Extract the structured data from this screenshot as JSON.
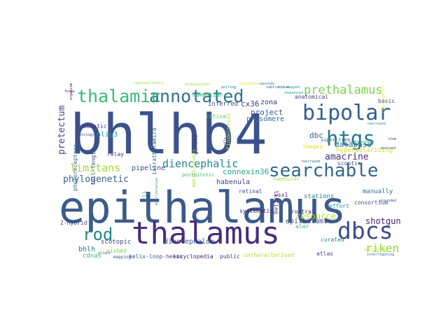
{
  "words": [
    {
      "text": "epithalamus",
      "color": "#3b5b8c"
    },
    {
      "text": "bhlhb4",
      "color": "#3b528b"
    },
    {
      "text": "thalamus",
      "color": "#472d7b"
    },
    {
      "text": "annotated",
      "color": "#2c728e"
    },
    {
      "text": "thalamic",
      "color": "#3aba76"
    },
    {
      "text": "bipolar",
      "color": "#355f8d"
    },
    {
      "text": "searchable",
      "color": "#31688e"
    },
    {
      "text": "htgs",
      "color": "#2a788e"
    },
    {
      "text": "prethalamus",
      "color": "#7ad151"
    },
    {
      "text": "dbcs",
      "color": "#3e4a89"
    },
    {
      "text": "rod",
      "color": "#25858e"
    },
    {
      "text": "riken",
      "color": "#8fd744"
    },
    {
      "text": "limitans",
      "color": "#a2da37"
    },
    {
      "text": "diencephalic",
      "color": "#26828e"
    },
    {
      "text": "phylogenetic",
      "color": "#33638d"
    },
    {
      "text": "pretectum",
      "color": "#3e4c8a"
    },
    {
      "text": "amacrine",
      "color": "#46307e"
    },
    {
      "text": "database",
      "color": "#2a788e"
    },
    {
      "text": "connexin36",
      "color": "#22a884"
    },
    {
      "text": "cx36",
      "color": "#443a83"
    },
    {
      "text": "shotgun",
      "color": "#482173"
    },
    {
      "text": "resource",
      "color": "#b5de2b"
    },
    {
      "text": "project",
      "color": "#3b528b"
    },
    {
      "text": "dbc",
      "color": "#355f8d"
    },
    {
      "text": "hyperpolarizing",
      "color": "#cae11f"
    },
    {
      "text": "olig3",
      "color": "#1f9a8a"
    },
    {
      "text": "pipeline",
      "color": "#3e4a89"
    },
    {
      "text": "habenula",
      "color": "#404688"
    },
    {
      "text": "inferred",
      "color": "#3b528b"
    },
    {
      "text": "mammalian",
      "color": "#29af7f"
    },
    {
      "text": "prosomere",
      "color": "#2e6e8e"
    },
    {
      "text": "zona",
      "color": "#472c7a"
    },
    {
      "text": "epithalamic",
      "color": "#3f4788"
    },
    {
      "text": "diencephalon",
      "color": "#375a8c"
    },
    {
      "text": "scotopic",
      "color": "#3e4989"
    },
    {
      "text": "bhlh",
      "color": "#2a768e"
    },
    {
      "text": "cdnas",
      "color": "#35b779"
    },
    {
      "text": "helix-loop-helix",
      "color": "#3e4c8a"
    },
    {
      "text": "encyclopedia",
      "color": "#482475"
    },
    {
      "text": "public",
      "color": "#443983"
    },
    {
      "text": "uncharacterised",
      "color": "#b5de2b"
    },
    {
      "text": "atlas",
      "color": "#414487"
    },
    {
      "text": "curated",
      "color": "#25858e"
    },
    {
      "text": "manually",
      "color": "#2c718e"
    },
    {
      "text": "consortium",
      "color": "#3a538b"
    },
    {
      "text": "stations",
      "color": "#26828e"
    },
    {
      "text": "listing",
      "color": "#481f70"
    },
    {
      "text": "retinal",
      "color": "#3f4889"
    },
    {
      "text": "2-hybrid",
      "color": "#3f4788"
    },
    {
      "text": "domestic",
      "color": "#453781"
    },
    {
      "text": "photoreceptors",
      "color": "#31688e"
    },
    {
      "text": "full-length",
      "color": "#3e4a89"
    },
    {
      "text": "intrathalamica",
      "color": "#2e6d8e"
    },
    {
      "text": "genome",
      "color": "#46337f"
    },
    {
      "text": "fingerprint",
      "color": "#addc30"
    },
    {
      "text": "retina",
      "color": "#5ec962"
    },
    {
      "text": "images",
      "color": "#d8e219"
    },
    {
      "text": "scoptic",
      "color": "#3f4889"
    },
    {
      "text": "vsx1",
      "color": "#482878"
    },
    {
      "text": "basic",
      "color": "#3b518b"
    },
    {
      "text": "super-tree",
      "color": "#2d708e"
    },
    {
      "text": "anatomical",
      "color": "#443b84"
    },
    {
      "text": "relay",
      "color": "#46327e"
    },
    {
      "text": "systematic",
      "color": "#481a6c"
    },
    {
      "text": "rostral",
      "color": "#46307e"
    },
    {
      "text": "alar",
      "color": "#37b878"
    },
    {
      "text": "zli",
      "color": "#25ab82"
    },
    {
      "text": "wished",
      "color": "#6ece58"
    },
    {
      "text": "mapping",
      "color": "#3e4c8a"
    },
    {
      "text": "effort",
      "color": "#1fa088"
    },
    {
      "text": "postmitotic",
      "color": "#40bd72"
    },
    {
      "text": "habenular",
      "color": "#a8db34"
    },
    {
      "text": "neurosecretory",
      "color": "#9bd93c"
    },
    {
      "text": "infls",
      "color": "#472e7c"
    },
    {
      "text": "ontology",
      "color": "#3f4889"
    },
    {
      "text": "forms",
      "color": "#470d60"
    },
    {
      "text": "interrogating",
      "color": "#2d708e"
    },
    {
      "text": "approaching",
      "color": "#d8e219"
    },
    {
      "text": "aliacs",
      "color": "#3b528b"
    },
    {
      "text": "minilibraries",
      "color": "#21918c"
    },
    {
      "text": "transcriptome",
      "color": "#addc30"
    },
    {
      "text": "neurods",
      "color": "#31688e"
    },
    {
      "text": "candidates",
      "color": "#dde318"
    },
    {
      "text": "grounded",
      "color": "#3a538b"
    },
    {
      "text": "rearrayed",
      "color": "#2f6c8e"
    },
    {
      "text": "rearrayed",
      "color": "#1f978b"
    },
    {
      "text": "stem",
      "color": "#3f4889"
    },
    {
      "text": "sequenced",
      "color": "#21a585"
    },
    {
      "text": "bio-mapped",
      "color": "#1fa187"
    },
    {
      "text": "subtractive",
      "color": "#3b528b"
    },
    {
      "text": "polling",
      "color": "#2a788e"
    },
    {
      "text": "evolved",
      "color": "#3e4a89"
    },
    {
      "text": "light-evoked",
      "color": "#1f9e89"
    },
    {
      "text": "pinealocytes",
      "color": "#9bd93c"
    },
    {
      "text": "organism",
      "color": "#440154"
    },
    {
      "text": "cross-species",
      "color": "#fde725"
    }
  ]
}
